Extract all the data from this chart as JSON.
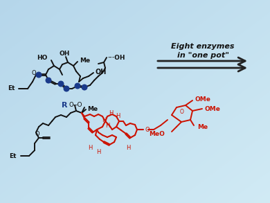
{
  "bg_color_tl": [
    0.71,
    0.84,
    0.92
  ],
  "bg_color_br": [
    0.82,
    0.92,
    0.96
  ],
  "arrow_color": "#222222",
  "arrow_text_line1": "Eight enzymes",
  "arrow_text_line2": "in \"one pot\"",
  "blue_color": "#1a3a8a",
  "red_color": "#cc1100",
  "black_color": "#111111",
  "label_Et": "Et",
  "label_Me": "Me",
  "label_OH": "OH",
  "label_HO": "HO",
  "label_O": "O",
  "label_H": "H",
  "label_R": "R",
  "label_MeO": "MeO",
  "label_OMe": "OMe",
  "figsize": [
    3.9,
    2.93
  ],
  "dpi": 100
}
